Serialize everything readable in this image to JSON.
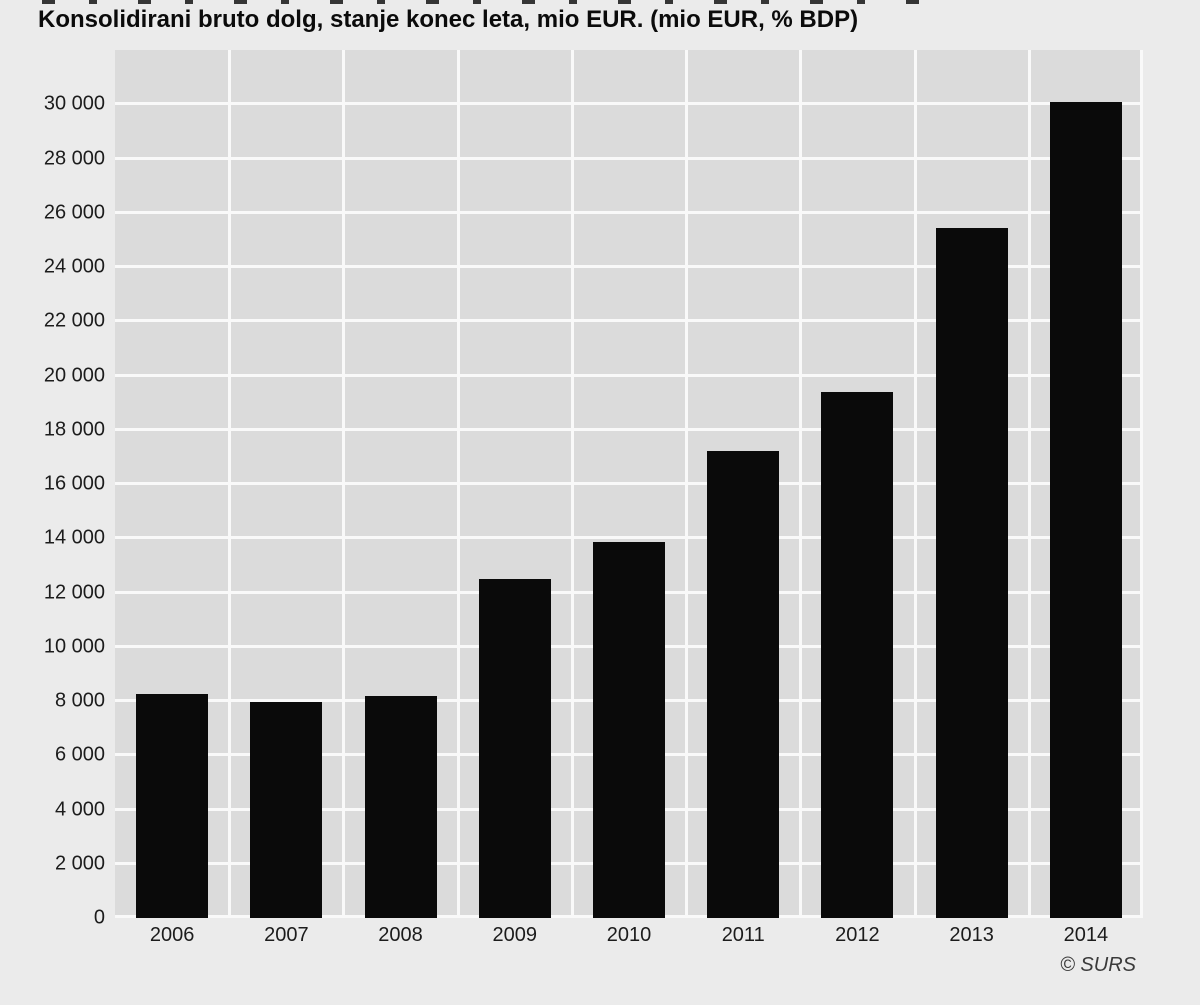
{
  "page": {
    "background_color": "#ebebeb",
    "title": "Konsolidirani bruto dolg, stanje konec leta, mio EUR. (mio EUR, % BDP)",
    "source_label": "© SURS"
  },
  "chart_data": {
    "type": "bar",
    "title": "Konsolidirani bruto dolg, stanje konec leta, mio EUR. (mio EUR, % BDP)",
    "categories": [
      "2006",
      "2007",
      "2008",
      "2009",
      "2010",
      "2011",
      "2012",
      "2013",
      "2014"
    ],
    "values": [
      8250,
      7950,
      8200,
      12500,
      13850,
      17200,
      19400,
      25450,
      30100
    ],
    "unit": "mio EUR",
    "xlabel": "",
    "ylabel": "",
    "ylim": [
      0,
      32000
    ],
    "ytick_step": 2000,
    "ytick_labels": [
      "0",
      "2 000",
      "4 000",
      "6 000",
      "8 000",
      "10 000",
      "12 000",
      "14 000",
      "16 000",
      "18 000",
      "20 000",
      "22 000",
      "24 000",
      "26 000",
      "28 000",
      "30 000"
    ],
    "grid": true,
    "legend": "none",
    "bar_color": "#0a0a0a",
    "plot_background": "#dbdbdb",
    "grid_color": "#f9f9f9",
    "source": "© SURS"
  }
}
